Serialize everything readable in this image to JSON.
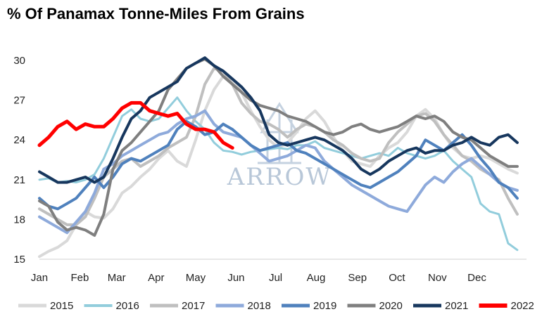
{
  "chart_title": "% Of Panamax Tonne-Miles From Grains",
  "watermark": {
    "text": "ARROW",
    "color": "#c5d2e0"
  },
  "chart_data": {
    "type": "line",
    "title": "% Of Panamax Tonne-Miles From Grains",
    "xlabel": "",
    "ylabel": "",
    "x_tick_labels": [
      "Jan",
      "Feb",
      "Mar",
      "Apr",
      "May",
      "Jun",
      "Jul",
      "Aug",
      "Sep",
      "Oct",
      "Nov",
      "Dec"
    ],
    "x_tick_weeks": [
      0,
      4.4,
      8.4,
      12.7,
      17,
      21.4,
      25.7,
      30.1,
      34.6,
      38.9,
      43.3,
      47.6
    ],
    "xlim": [
      0,
      53
    ],
    "ylim": [
      15,
      31.5
    ],
    "y_ticks": [
      15,
      18,
      21,
      24,
      27,
      30
    ],
    "grid": false,
    "legend_position": "bottom",
    "series": [
      {
        "name": "2015",
        "color": "#d9d9d9",
        "width": 4,
        "values": [
          15.2,
          15.6,
          15.9,
          16.4,
          17.6,
          18.6,
          18.2,
          18.1,
          18.8,
          20.0,
          20.5,
          21.2,
          21.8,
          22.6,
          23.2,
          22.4,
          22.0,
          24.0,
          26.2,
          27.8,
          28.8,
          28.6,
          27.6,
          26.2,
          25.0,
          24.0,
          23.4,
          23.8,
          24.6,
          25.6,
          26.2,
          25.4,
          24.2,
          23.2,
          22.4,
          22.2,
          22.0,
          22.8,
          23.4,
          23.8,
          24.6,
          25.8,
          26.3,
          25.6,
          24.4,
          23.4,
          22.8,
          22.6,
          22.8,
          22.6,
          22.2,
          21.8,
          21.5
        ]
      },
      {
        "name": "2016",
        "color": "#92cddc",
        "width": 3,
        "values": [
          21.0,
          21.1,
          20.8,
          20.9,
          20.8,
          21.0,
          21.4,
          22.6,
          24.2,
          25.8,
          26.3,
          25.6,
          25.4,
          25.6,
          26.4,
          27.2,
          26.2,
          25.4,
          24.8,
          23.8,
          23.2,
          23.1,
          22.9,
          23.1,
          23.2,
          23.3,
          23.4,
          23.3,
          23.6,
          23.6,
          23.9,
          23.4,
          23.2,
          23.0,
          22.8,
          22.6,
          22.8,
          23.0,
          22.8,
          23.4,
          23.0,
          22.8,
          22.6,
          22.8,
          23.2,
          22.4,
          21.8,
          21.2,
          19.2,
          18.6,
          18.4,
          16.2,
          15.7
        ]
      },
      {
        "name": "2017",
        "color": "#bfbfbf",
        "width": 4,
        "values": [
          18.8,
          18.4,
          18.0,
          17.6,
          17.6,
          18.2,
          19.6,
          21.2,
          21.8,
          22.4,
          22.6,
          22.0,
          22.4,
          22.8,
          23.4,
          23.8,
          24.2,
          25.8,
          28.2,
          29.4,
          29.2,
          28.2,
          26.8,
          26.0,
          25.4,
          25.2,
          24.8,
          24.2,
          24.8,
          25.2,
          25.0,
          24.6,
          24.0,
          23.6,
          23.0,
          22.6,
          22.4,
          22.6,
          23.8,
          24.6,
          25.2,
          25.8,
          26.0,
          25.4,
          24.4,
          23.6,
          22.8,
          22.4,
          21.8,
          21.4,
          21.0,
          19.6,
          18.4
        ]
      },
      {
        "name": "2018",
        "color": "#8eaadb",
        "width": 4,
        "values": [
          18.2,
          17.8,
          17.4,
          17.0,
          17.8,
          18.6,
          20.0,
          21.8,
          22.2,
          22.8,
          23.2,
          23.6,
          24.0,
          24.4,
          24.6,
          25.2,
          25.6,
          25.8,
          26.2,
          25.2,
          24.6,
          24.4,
          24.2,
          23.6,
          23.0,
          22.4,
          22.6,
          22.8,
          23.2,
          23.6,
          23.4,
          22.4,
          21.8,
          21.2,
          20.6,
          20.2,
          19.8,
          19.4,
          19.0,
          18.8,
          18.6,
          19.6,
          20.6,
          21.2,
          20.8,
          21.6,
          22.2,
          22.6,
          22.0,
          21.4,
          20.8,
          20.4,
          20.2
        ]
      },
      {
        "name": "2019",
        "color": "#4f81bd",
        "width": 4,
        "values": [
          19.6,
          19.0,
          18.8,
          19.2,
          19.6,
          20.4,
          21.2,
          20.4,
          21.2,
          22.2,
          22.6,
          22.4,
          22.8,
          23.2,
          23.6,
          24.8,
          25.4,
          25.0,
          24.4,
          24.6,
          25.2,
          24.8,
          24.2,
          23.6,
          23.2,
          23.4,
          23.6,
          23.8,
          23.2,
          23.0,
          22.6,
          22.2,
          21.8,
          21.4,
          21.0,
          20.6,
          20.4,
          20.8,
          21.2,
          21.6,
          22.2,
          22.8,
          24.0,
          23.6,
          23.2,
          23.8,
          24.4,
          23.6,
          22.6,
          21.8,
          20.8,
          20.4,
          19.6
        ]
      },
      {
        "name": "2020",
        "color": "#7f7f7f",
        "width": 4,
        "values": [
          19.4,
          19.0,
          17.8,
          17.2,
          17.4,
          17.2,
          16.8,
          18.4,
          21.8,
          23.2,
          23.8,
          24.6,
          25.4,
          26.2,
          27.8,
          28.6,
          29.4,
          29.8,
          30.1,
          29.6,
          28.8,
          28.2,
          27.6,
          27.0,
          26.6,
          26.4,
          26.2,
          25.8,
          25.6,
          25.4,
          25.0,
          24.6,
          24.4,
          24.6,
          25.0,
          25.2,
          24.8,
          24.6,
          24.8,
          25.0,
          25.4,
          25.8,
          25.6,
          25.8,
          25.4,
          24.6,
          24.2,
          24.0,
          23.4,
          22.8,
          22.4,
          22.0,
          22.0
        ]
      },
      {
        "name": "2021",
        "color": "#17375e",
        "width": 4,
        "values": [
          21.6,
          21.2,
          20.8,
          20.8,
          21.0,
          21.2,
          20.8,
          21.2,
          22.6,
          24.2,
          25.6,
          26.2,
          27.2,
          27.6,
          28.0,
          28.4,
          29.4,
          29.8,
          30.2,
          29.6,
          29.2,
          28.6,
          28.0,
          27.2,
          26.2,
          24.4,
          23.8,
          23.6,
          23.8,
          24.0,
          24.2,
          24.0,
          23.6,
          23.2,
          22.6,
          21.8,
          21.4,
          21.8,
          22.4,
          22.8,
          23.2,
          23.4,
          23.0,
          23.2,
          23.2,
          23.6,
          23.8,
          24.2,
          23.8,
          23.6,
          24.2,
          24.4,
          23.8
        ]
      },
      {
        "name": "2022",
        "color": "#ff0000",
        "width": 5,
        "values": [
          23.6,
          24.2,
          25.0,
          25.4,
          24.8,
          25.2,
          25.0,
          25.0,
          25.6,
          26.4,
          26.8,
          26.8,
          26.2,
          26.0,
          25.8,
          26.0,
          25.2,
          24.8,
          24.8,
          24.6,
          23.8,
          23.4
        ]
      }
    ]
  }
}
